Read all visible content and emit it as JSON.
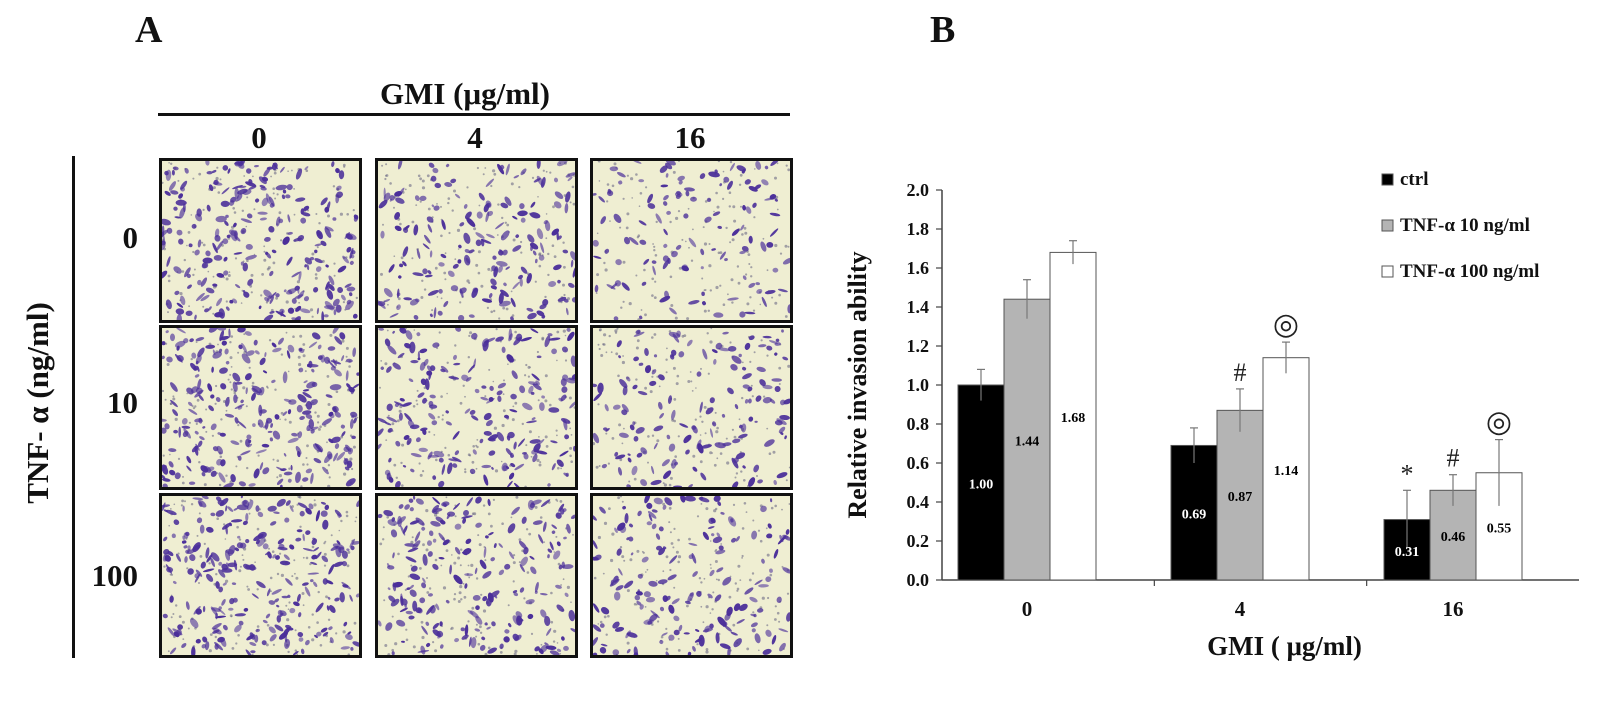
{
  "panel_a": {
    "letter": "A",
    "header": "GMI (μg/ml)",
    "col_labels": [
      "0",
      "4",
      "16"
    ],
    "row_axis_label": "TNF- α (ng/ml)",
    "row_labels": [
      "0",
      "10",
      "100"
    ],
    "cells": [
      {
        "row": "0",
        "col": "0",
        "density": 0.95
      },
      {
        "row": "0",
        "col": "4",
        "density": 0.6
      },
      {
        "row": "0",
        "col": "16",
        "density": 0.3
      },
      {
        "row": "10",
        "col": "0",
        "density": 1.0
      },
      {
        "row": "10",
        "col": "4",
        "density": 0.7
      },
      {
        "row": "10",
        "col": "16",
        "density": 0.45
      },
      {
        "row": "100",
        "col": "0",
        "density": 1.0
      },
      {
        "row": "100",
        "col": "4",
        "density": 0.75
      },
      {
        "row": "100",
        "col": "16",
        "density": 0.55
      }
    ],
    "colors": {
      "stain": "#4b2f9a",
      "background": "#efeed2"
    }
  },
  "panel_b": {
    "letter": "B"
  },
  "chart_data": {
    "type": "bar",
    "categories": [
      "0",
      "4",
      "16"
    ],
    "xlabel": "GMI ( μg/ml)",
    "ylabel": "Relative invasion ability",
    "ylim": [
      0,
      2.0
    ],
    "yticks": [
      "0.0",
      "0.2",
      "0.4",
      "0.6",
      "0.8",
      "1.0",
      "1.2",
      "1.4",
      "1.6",
      "1.8",
      "2.0"
    ],
    "grid": false,
    "legend_position": "top-right",
    "series": [
      {
        "name": "ctrl",
        "color": "#000000",
        "label_color": "#ffffff",
        "values": [
          1.0,
          0.69,
          0.31
        ],
        "errors": [
          0.08,
          0.09,
          0.15
        ],
        "labels": [
          "1.00",
          "0.69",
          "0.31"
        ],
        "markers": [
          "",
          "",
          "*"
        ]
      },
      {
        "name": "TNF-α 10 ng/ml",
        "color": "#b4b4b4",
        "label_color": "#000000",
        "values": [
          1.44,
          0.87,
          0.46
        ],
        "errors": [
          0.1,
          0.11,
          0.08
        ],
        "labels": [
          "1.44",
          "0.87",
          "0.46"
        ],
        "markers": [
          "",
          "#",
          "#"
        ]
      },
      {
        "name": "TNF-α 100 ng/ml",
        "color": "#ffffff",
        "label_color": "#000000",
        "values": [
          1.68,
          1.14,
          0.55
        ],
        "errors": [
          0.06,
          0.08,
          0.17
        ],
        "labels": [
          "1.68",
          "1.14",
          "0.55"
        ],
        "markers": [
          "",
          "◎",
          "◎"
        ]
      }
    ]
  }
}
